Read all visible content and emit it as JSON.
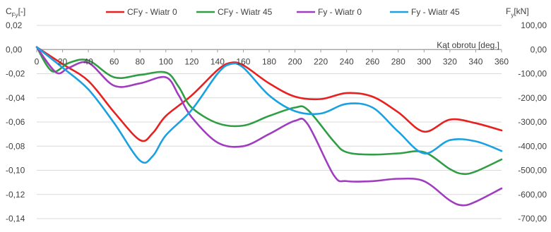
{
  "chart_data": {
    "type": "line",
    "title": "",
    "xlabel": "Kąt obrotu [deg.]",
    "ylabel_left": {
      "main": "C",
      "sub": "Fy",
      "rest": "[-]"
    },
    "ylabel_right": {
      "main": "F",
      "sub": "y",
      "rest": "[kN]"
    },
    "xlim": [
      0,
      360
    ],
    "ylim_left": [
      -0.14,
      0.02
    ],
    "ylim_right": [
      -700,
      100
    ],
    "grid": true,
    "legend_position": "top",
    "x_ticks": [
      "0",
      "20",
      "40",
      "60",
      "80",
      "100",
      "120",
      "140",
      "160",
      "180",
      "200",
      "220",
      "240",
      "260",
      "280",
      "300",
      "320",
      "340",
      "360"
    ],
    "y_ticks_left": [
      "0,02",
      "0,00",
      "-0,02",
      "-0,04",
      "-0,06",
      "-0,08",
      "-0,10",
      "-0,12",
      "-0,14"
    ],
    "y_ticks_right": [
      "100,00",
      "0,00",
      "-100,00",
      "-200,00",
      "-300,00",
      "-400,00",
      "-500,00",
      "-600,00",
      "-700,00"
    ],
    "series": [
      {
        "name": "CFy - Wiatr 0",
        "axis": "left",
        "color": "#e8201f",
        "points": [
          [
            0,
            0.002
          ],
          [
            20,
            -0.012
          ],
          [
            40,
            -0.026
          ],
          [
            60,
            -0.052
          ],
          [
            80,
            -0.075
          ],
          [
            90,
            -0.069
          ],
          [
            100,
            -0.055
          ],
          [
            120,
            -0.038
          ],
          [
            140,
            -0.017
          ],
          [
            150,
            -0.011
          ],
          [
            160,
            -0.013
          ],
          [
            180,
            -0.028
          ],
          [
            200,
            -0.039
          ],
          [
            220,
            -0.041
          ],
          [
            240,
            -0.036
          ],
          [
            260,
            -0.039
          ],
          [
            280,
            -0.052
          ],
          [
            300,
            -0.068
          ],
          [
            320,
            -0.058
          ],
          [
            340,
            -0.061
          ],
          [
            360,
            -0.067
          ]
        ]
      },
      {
        "name": "CFy - Wiatr 45",
        "axis": "left",
        "color": "#2f9e44",
        "points": [
          [
            0,
            0.002
          ],
          [
            12,
            -0.018
          ],
          [
            25,
            -0.011
          ],
          [
            40,
            -0.009
          ],
          [
            60,
            -0.023
          ],
          [
            80,
            -0.021
          ],
          [
            100,
            -0.019
          ],
          [
            110,
            -0.031
          ],
          [
            120,
            -0.048
          ],
          [
            140,
            -0.061
          ],
          [
            160,
            -0.063
          ],
          [
            180,
            -0.055
          ],
          [
            200,
            -0.048
          ],
          [
            210,
            -0.05
          ],
          [
            230,
            -0.076
          ],
          [
            240,
            -0.085
          ],
          [
            260,
            -0.087
          ],
          [
            280,
            -0.086
          ],
          [
            300,
            -0.085
          ],
          [
            320,
            -0.099
          ],
          [
            330,
            -0.103
          ],
          [
            340,
            -0.101
          ],
          [
            360,
            -0.091
          ]
        ]
      },
      {
        "name": "Fy - Wiatr 0",
        "axis": "right",
        "color": "#a03cbf",
        "points": [
          [
            0,
            10
          ],
          [
            15,
            -95
          ],
          [
            25,
            -75
          ],
          [
            40,
            -55
          ],
          [
            60,
            -150
          ],
          [
            80,
            -140
          ],
          [
            100,
            -115
          ],
          [
            110,
            -190
          ],
          [
            120,
            -280
          ],
          [
            140,
            -385
          ],
          [
            160,
            -400
          ],
          [
            180,
            -350
          ],
          [
            200,
            -295
          ],
          [
            210,
            -310
          ],
          [
            230,
            -520
          ],
          [
            240,
            -545
          ],
          [
            260,
            -545
          ],
          [
            280,
            -535
          ],
          [
            300,
            -545
          ],
          [
            320,
            -625
          ],
          [
            330,
            -645
          ],
          [
            340,
            -630
          ],
          [
            360,
            -575
          ]
        ]
      },
      {
        "name": "Fy - Wiatr 45",
        "axis": "right",
        "color": "#1ba1e2",
        "points": [
          [
            0,
            10
          ],
          [
            20,
            -75
          ],
          [
            40,
            -165
          ],
          [
            60,
            -305
          ],
          [
            80,
            -460
          ],
          [
            90,
            -440
          ],
          [
            100,
            -355
          ],
          [
            120,
            -250
          ],
          [
            140,
            -100
          ],
          [
            150,
            -60
          ],
          [
            160,
            -75
          ],
          [
            180,
            -190
          ],
          [
            200,
            -255
          ],
          [
            220,
            -265
          ],
          [
            240,
            -225
          ],
          [
            260,
            -240
          ],
          [
            280,
            -340
          ],
          [
            300,
            -430
          ],
          [
            320,
            -375
          ],
          [
            340,
            -380
          ],
          [
            360,
            -420
          ]
        ]
      }
    ]
  }
}
